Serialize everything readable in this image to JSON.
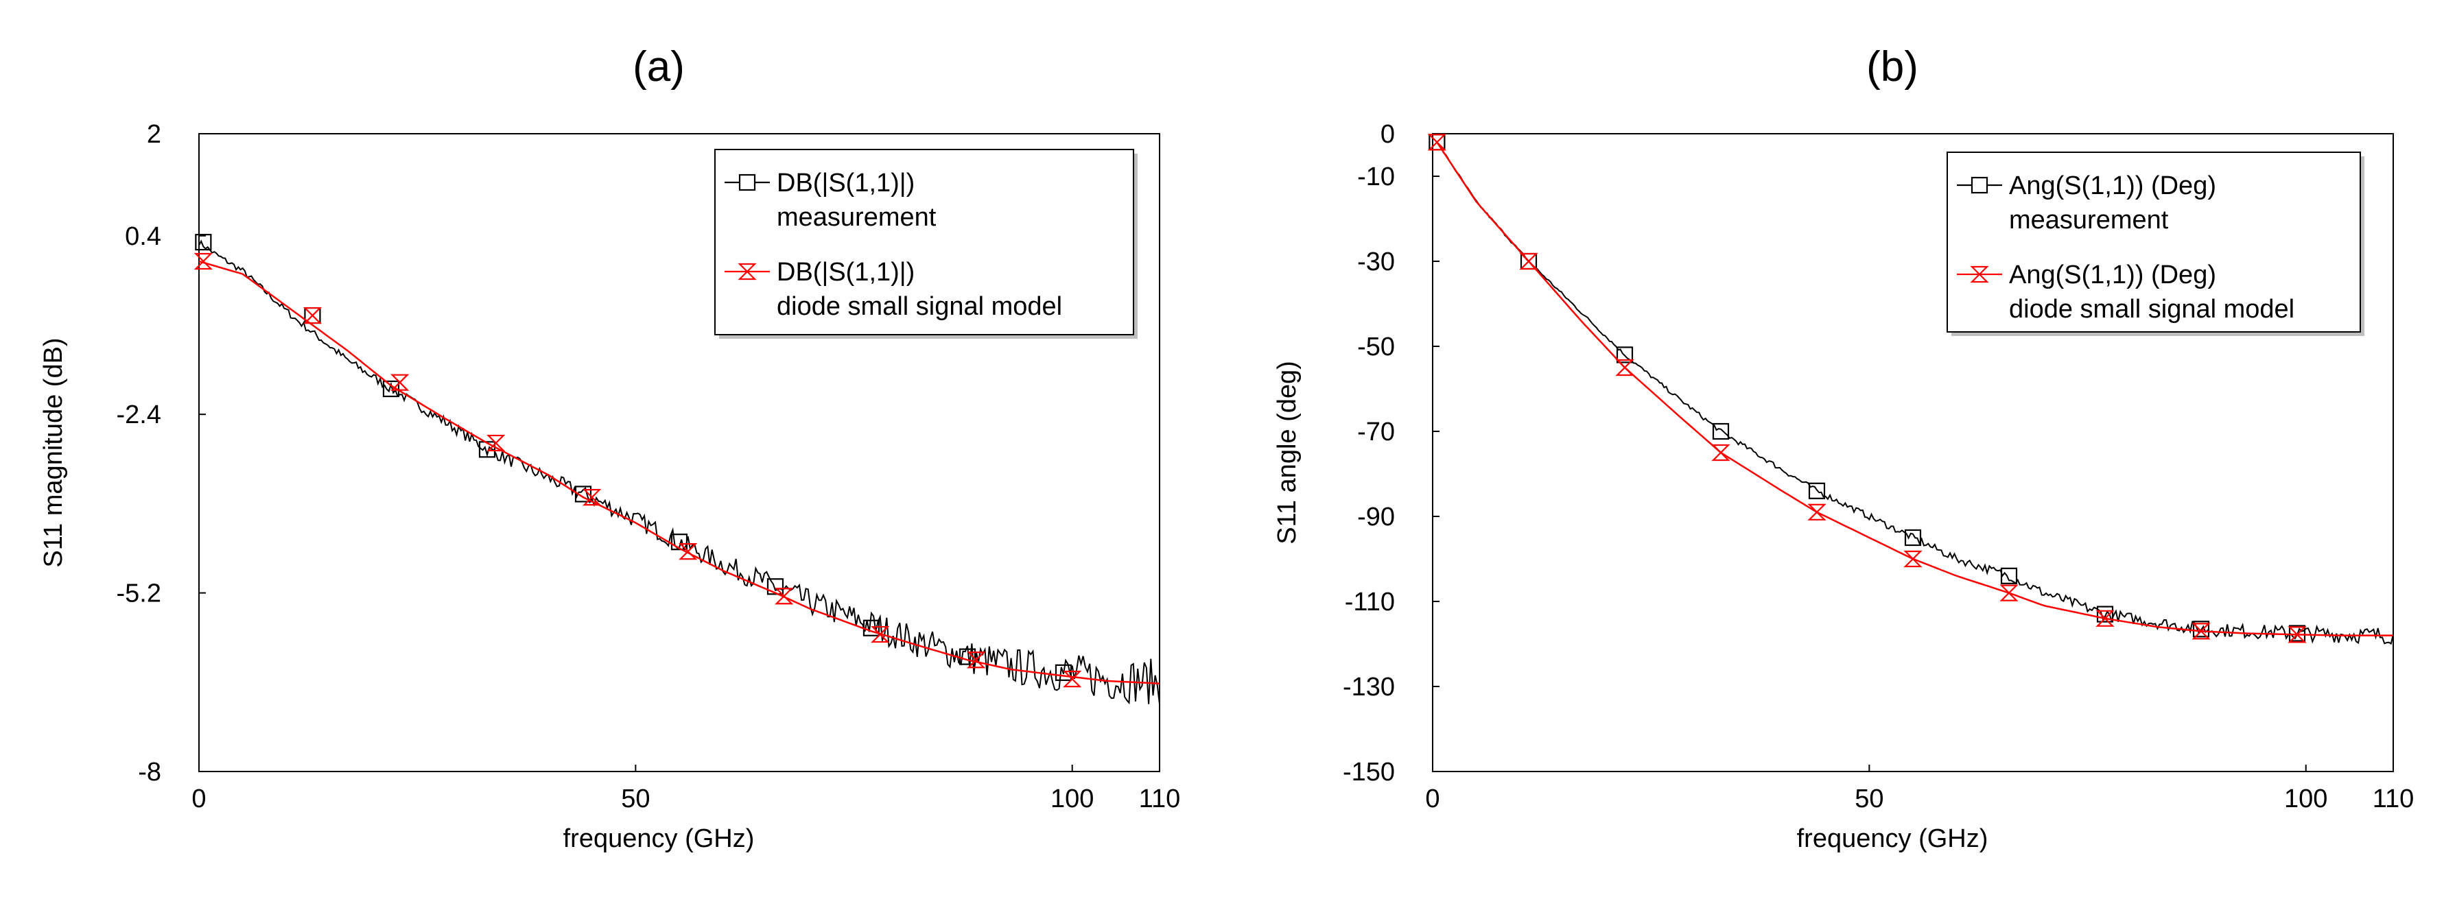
{
  "chart_data": [
    {
      "type": "line",
      "panel_label": "(a)",
      "xlabel": "frequency (GHz)",
      "ylabel": "S11 magnitude (dB)",
      "xlim": [
        0,
        110
      ],
      "ylim": [
        -8,
        2
      ],
      "xticks": [
        0,
        50,
        100,
        110
      ],
      "xtick_labels": [
        "0",
        "50",
        "100",
        "110"
      ],
      "yticks": [
        2,
        0.4,
        -2.4,
        -5.2,
        -8
      ],
      "ytick_labels": [
        "2",
        "0.4",
        "-2.4",
        "-5.2",
        "-8"
      ],
      "grid": false,
      "legend_position": "top-right",
      "series": [
        {
          "name": "DB(|S(1,1)|)",
          "sublabel": "measurement",
          "color": "#000000",
          "marker": "square",
          "noise": true,
          "x": [
            0,
            2,
            5,
            11,
            17,
            22,
            28,
            33,
            40,
            44,
            50,
            55,
            60,
            66,
            70,
            77,
            83,
            88,
            93,
            99,
            104,
            110
          ],
          "values": [
            0.3,
            0.1,
            -0.15,
            -0.9,
            -1.55,
            -2.0,
            -2.5,
            -2.95,
            -3.4,
            -3.65,
            -4.05,
            -4.4,
            -4.75,
            -5.1,
            -5.35,
            -5.7,
            -6.0,
            -6.2,
            -6.35,
            -6.45,
            -6.55,
            -6.6
          ],
          "marker_x": [
            0.5,
            13,
            22,
            33,
            44,
            55,
            66,
            77,
            88,
            99
          ],
          "marker_values": [
            0.3,
            -0.85,
            -2.0,
            -2.95,
            -3.65,
            -4.4,
            -5.1,
            -5.75,
            -6.2,
            -6.45
          ]
        },
        {
          "name": "DB(|S(1,1)|)",
          "sublabel": "diode small signal model",
          "color": "#ff0000",
          "marker": "bowtie",
          "noise": false,
          "x": [
            0,
            5,
            11,
            17,
            22,
            28,
            33,
            40,
            44,
            50,
            55,
            60,
            66,
            70,
            77,
            83,
            88,
            93,
            99,
            104,
            110
          ],
          "values": [
            0.0,
            -0.2,
            -0.8,
            -1.4,
            -1.95,
            -2.45,
            -2.85,
            -3.35,
            -3.7,
            -4.1,
            -4.5,
            -4.85,
            -5.2,
            -5.45,
            -5.8,
            -6.05,
            -6.25,
            -6.4,
            -6.5,
            -6.58,
            -6.62
          ],
          "marker_x": [
            0.5,
            13,
            23,
            34,
            45,
            56,
            67,
            78,
            89,
            100
          ],
          "marker_values": [
            0.0,
            -0.85,
            -1.9,
            -2.85,
            -3.7,
            -4.55,
            -5.25,
            -5.85,
            -6.25,
            -6.55
          ]
        }
      ]
    },
    {
      "type": "line",
      "panel_label": "(b)",
      "xlabel": "frequency (GHz)",
      "ylabel": "S11 angle (deg)",
      "xlim": [
        0,
        110
      ],
      "ylim": [
        -150,
        0
      ],
      "xticks": [
        0,
        50,
        100,
        110
      ],
      "xtick_labels": [
        "0",
        "50",
        "100",
        "110"
      ],
      "yticks": [
        0,
        -10,
        -30,
        -50,
        -70,
        -90,
        -110,
        -130,
        -150
      ],
      "ytick_labels": [
        "0",
        "-10",
        "-30",
        "-50",
        "-70",
        "-90",
        "-110",
        "-130",
        "-150"
      ],
      "grid": false,
      "legend_position": "top-right",
      "series": [
        {
          "name": "Ang(S(1,1)) (Deg)",
          "sublabel": "measurement",
          "color": "#000000",
          "marker": "square",
          "noise": true,
          "x": [
            0.5,
            5,
            11,
            17,
            22,
            28,
            33,
            40,
            44,
            50,
            55,
            60,
            66,
            70,
            77,
            83,
            88,
            93,
            99,
            104,
            110
          ],
          "values": [
            -2,
            -16,
            -30,
            -42,
            -52,
            -62,
            -70,
            -79,
            -84,
            -90,
            -95,
            -100,
            -104,
            -108,
            -113,
            -115,
            -116.5,
            -117,
            -117.5,
            -117.8,
            -118
          ],
          "marker_x": [
            0.5,
            11,
            22,
            33,
            44,
            55,
            66,
            77,
            88,
            99
          ],
          "marker_values": [
            -2,
            -30,
            -52,
            -70,
            -84,
            -95,
            -104,
            -113,
            -116.5,
            -117.5
          ]
        },
        {
          "name": "Ang(S(1,1)) (Deg)",
          "sublabel": "diode small signal model",
          "color": "#ff0000",
          "marker": "bowtie",
          "noise": false,
          "x": [
            0.5,
            5,
            11,
            17,
            22,
            28,
            33,
            40,
            44,
            50,
            55,
            60,
            66,
            70,
            77,
            83,
            88,
            93,
            99,
            104,
            110
          ],
          "values": [
            -2,
            -16,
            -30,
            -44,
            -55,
            -66,
            -75,
            -84,
            -89,
            -95,
            -100,
            -104,
            -108,
            -111,
            -114,
            -116,
            -117,
            -117.5,
            -117.8,
            -118,
            -118
          ],
          "marker_x": [
            0.5,
            11,
            22,
            33,
            44,
            55,
            66,
            77,
            88,
            99
          ],
          "marker_values": [
            -2,
            -30,
            -55,
            -75,
            -89,
            -100,
            -108,
            -114,
            -117,
            -117.8
          ]
        }
      ]
    }
  ]
}
